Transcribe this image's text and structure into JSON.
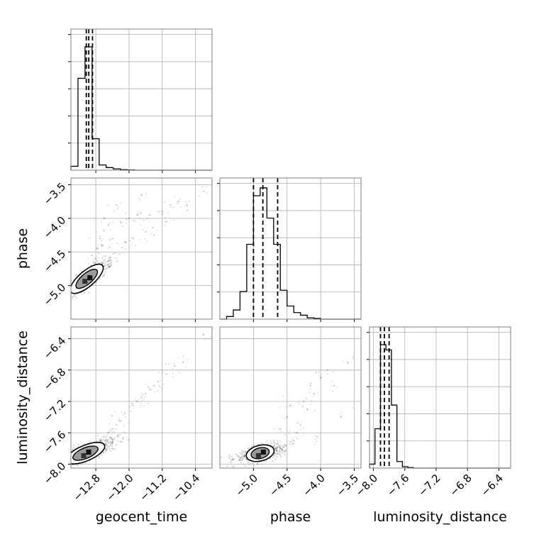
{
  "chart_data": {
    "type": "corner",
    "parameters": [
      {
        "name": "geocent_time",
        "axis_label": "geocent_time",
        "range": [
          -13.4,
          -10.0
        ],
        "ticks": [
          -12.8,
          -12.0,
          -11.2,
          -10.4
        ],
        "tick_labels": [
          "−12.8",
          "−12.0",
          "−11.2",
          "−10.4"
        ],
        "quantiles": [
          -13.03,
          -12.97,
          -12.88
        ],
        "histogram": {
          "bin_edges": [
            -13.4,
            -13.23,
            -13.06,
            -12.89,
            -12.72,
            -12.55,
            -12.38,
            -12.21,
            -12.04,
            -11.87,
            -11.7
          ],
          "counts": [
            0.03,
            0.7,
            0.94,
            0.24,
            0.04,
            0.02,
            0.01,
            0.004,
            0.002,
            0.0
          ]
        }
      },
      {
        "name": "phase",
        "axis_label": "phase",
        "range": [
          -5.5,
          -3.4
        ],
        "ticks": [
          -5.0,
          -4.5,
          -4.0,
          -3.5
        ],
        "tick_labels": [
          "−5.0",
          "−4.5",
          "−4.0",
          "−3.5"
        ],
        "quantiles": [
          -5.0,
          -4.86,
          -4.64
        ],
        "histogram": {
          "bin_edges": [
            -5.4,
            -5.3,
            -5.2,
            -5.1,
            -5.0,
            -4.9,
            -4.8,
            -4.7,
            -4.6,
            -4.5,
            -4.4,
            -4.3,
            -4.2,
            -4.1,
            -4.0
          ],
          "counts": [
            0.02,
            0.07,
            0.21,
            0.57,
            0.94,
            1.0,
            0.77,
            0.57,
            0.22,
            0.1,
            0.05,
            0.03,
            0.01,
            0.005
          ]
        }
      },
      {
        "name": "luminosity_distance",
        "axis_label": "luminosity_distance",
        "range": [
          -8.05,
          -6.25
        ],
        "ticks": [
          -8.0,
          -7.6,
          -7.2,
          -6.8,
          -6.4
        ],
        "tick_labels": [
          "−8.0",
          "−7.6",
          "−7.2",
          "−6.8",
          "−6.4"
        ],
        "quantiles": [
          -7.91,
          -7.86,
          -7.8
        ],
        "histogram": {
          "bin_edges": [
            -8.05,
            -7.98,
            -7.91,
            -7.84,
            -7.77,
            -7.7,
            -7.63,
            -7.56,
            -7.49
          ],
          "counts": [
            0.03,
            0.3,
            0.94,
            0.9,
            0.48,
            0.05,
            0.01,
            0.004
          ]
        }
      }
    ],
    "joint_distributions": [
      {
        "x": "geocent_time",
        "y": "phase",
        "correlation": 0.85,
        "core_center": [
          -13.02,
          -4.9
        ],
        "slope": 0.85,
        "tail_samples": [
          [
            -12.9,
            -4.55
          ],
          [
            -12.7,
            -4.3
          ],
          [
            -12.6,
            -4.0
          ],
          [
            -12.5,
            -4.1
          ],
          [
            -12.4,
            -4.3
          ],
          [
            -12.2,
            -4.05
          ],
          [
            -12.0,
            -4.0
          ],
          [
            -11.8,
            -3.95
          ],
          [
            -11.6,
            -4.2
          ],
          [
            -11.4,
            -4.25
          ],
          [
            -11.2,
            -3.9
          ],
          [
            -11.0,
            -3.8
          ],
          [
            -10.8,
            -3.75
          ],
          [
            -10.6,
            -3.8
          ],
          [
            -10.2,
            -3.6
          ],
          [
            -12.1,
            -4.35
          ],
          [
            -11.9,
            -4.3
          ],
          [
            -12.3,
            -3.8
          ],
          [
            -11.7,
            -3.65
          ],
          [
            -11.5,
            -3.95
          ],
          [
            -12.8,
            -4.6
          ],
          [
            -12.75,
            -4.45
          ],
          [
            -12.65,
            -4.4
          ],
          [
            -11.1,
            -4.05
          ]
        ]
      },
      {
        "x": "geocent_time",
        "y": "luminosity_distance",
        "correlation": 0.9,
        "core_center": [
          -13.05,
          -7.86
        ],
        "slope": 0.42,
        "tail_samples": [
          [
            -12.7,
            -7.7
          ],
          [
            -12.5,
            -7.6
          ],
          [
            -12.3,
            -7.5
          ],
          [
            -12.1,
            -7.35
          ],
          [
            -11.9,
            -7.25
          ],
          [
            -11.7,
            -7.15
          ],
          [
            -11.5,
            -7.05
          ],
          [
            -11.3,
            -6.95
          ],
          [
            -11.1,
            -6.85
          ],
          [
            -10.9,
            -6.75
          ],
          [
            -10.7,
            -6.7
          ],
          [
            -10.2,
            -6.35
          ],
          [
            -12.2,
            -7.45
          ],
          [
            -11.8,
            -7.2
          ],
          [
            -11.6,
            -7.1
          ],
          [
            -11.4,
            -7.0
          ],
          [
            -12.6,
            -7.65
          ],
          [
            -12.4,
            -7.55
          ]
        ]
      },
      {
        "x": "phase",
        "y": "luminosity_distance",
        "correlation": 0.35,
        "core_center": [
          -4.9,
          -7.86
        ],
        "slope": 0.25,
        "tail_samples": [
          [
            -4.4,
            -7.7
          ],
          [
            -4.3,
            -7.5
          ],
          [
            -4.2,
            -7.3
          ],
          [
            -4.1,
            -7.1
          ],
          [
            -4.0,
            -6.9
          ],
          [
            -3.9,
            -6.8
          ],
          [
            -3.6,
            -6.7
          ],
          [
            -4.5,
            -7.4
          ],
          [
            -4.35,
            -7.6
          ],
          [
            -4.25,
            -7.2
          ],
          [
            -4.15,
            -7.0
          ],
          [
            -4.6,
            -7.55
          ],
          [
            -4.45,
            -7.25
          ],
          [
            -3.8,
            -7.0
          ],
          [
            -3.7,
            -7.4
          ],
          [
            -4.05,
            -7.65
          ],
          [
            -4.7,
            -7.7
          ]
        ]
      }
    ],
    "grid": true
  }
}
